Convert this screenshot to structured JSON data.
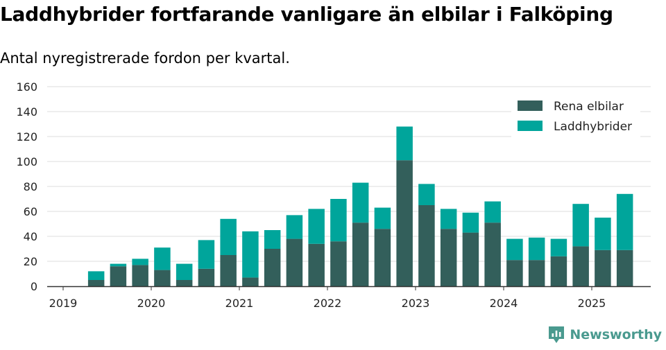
{
  "title": "Laddhybrider fortfarande vanligare än elbilar i Falköping",
  "subtitle": "Antal nyregistrerade fordon per kvartal.",
  "brand": {
    "name": "Newsworthy",
    "icon": "newsworthy-logo-icon",
    "color": "#4a9a8f"
  },
  "colors": {
    "rena": "#335f5b",
    "ladd": "#00a59b",
    "grid": "#dddddd",
    "axis": "#333333"
  },
  "chart_data": {
    "type": "bar",
    "stacked": true,
    "title": "Laddhybrider fortfarande vanligare än elbilar i Falköping",
    "subtitle": "Antal nyregistrerade fordon per kvartal.",
    "xlabel": "",
    "ylabel": "",
    "ylim": [
      0,
      160
    ],
    "yticks": [
      "0",
      "20",
      "40",
      "60",
      "80",
      "100",
      "120",
      "140",
      "160"
    ],
    "xticks": [
      "2019",
      "2020",
      "2021",
      "2022",
      "2023",
      "2024",
      "2025"
    ],
    "grid": true,
    "legend": "top-right",
    "categories": [
      "2019 Q2",
      "2019 Q3",
      "2019 Q4",
      "2020 Q1",
      "2020 Q2",
      "2020 Q3",
      "2020 Q4",
      "2021 Q1",
      "2021 Q2",
      "2021 Q3",
      "2021 Q4",
      "2022 Q1",
      "2022 Q2",
      "2022 Q3",
      "2022 Q4",
      "2023 Q1",
      "2023 Q2",
      "2023 Q3",
      "2023 Q4",
      "2024 Q1",
      "2024 Q2",
      "2024 Q3",
      "2024 Q4",
      "2025 Q1",
      "2025 Q2"
    ],
    "series": [
      {
        "name": "Rena elbilar",
        "values": [
          5,
          16,
          17,
          13,
          5,
          14,
          25,
          7,
          30,
          38,
          34,
          36,
          51,
          46,
          101,
          65,
          46,
          43,
          51,
          21,
          21,
          24,
          32,
          29,
          29
        ]
      },
      {
        "name": "Laddhybrider",
        "values": [
          7,
          2,
          5,
          18,
          13,
          23,
          29,
          37,
          15,
          19,
          28,
          34,
          32,
          17,
          27,
          17,
          16,
          16,
          17,
          17,
          18,
          14,
          34,
          26,
          45
        ]
      }
    ]
  }
}
